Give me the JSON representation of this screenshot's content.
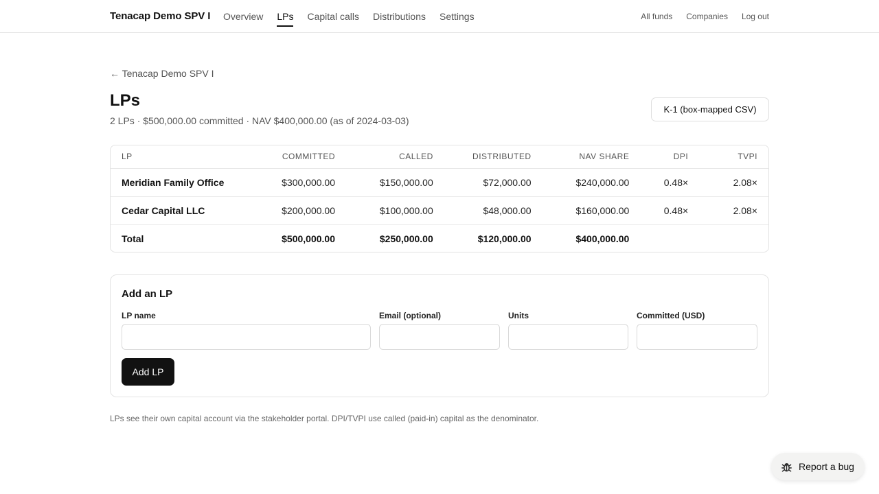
{
  "header": {
    "brand": "Tenacap Demo SPV I",
    "nav": [
      {
        "label": "Overview",
        "active": false
      },
      {
        "label": "LPs",
        "active": true
      },
      {
        "label": "Capital calls",
        "active": false
      },
      {
        "label": "Distributions",
        "active": false
      },
      {
        "label": "Settings",
        "active": false
      }
    ],
    "right_links": [
      "All funds",
      "Companies",
      "Log out"
    ]
  },
  "page": {
    "back_label": "← Tenacap Demo SPV I",
    "title": "LPs",
    "subtitle": "2 LPs · $500,000.00 committed · NAV $400,000.00 (as of 2024-03-03)",
    "export_button": "K-1 (box-mapped CSV)"
  },
  "table": {
    "columns": [
      "LP",
      "COMMITTED",
      "CALLED",
      "DISTRIBUTED",
      "NAV SHARE",
      "DPI",
      "TVPI"
    ],
    "rows": [
      [
        "Meridian Family Office",
        "$300,000.00",
        "$150,000.00",
        "$72,000.00",
        "$240,000.00",
        "0.48×",
        "2.08×"
      ],
      [
        "Cedar Capital LLC",
        "$200,000.00",
        "$100,000.00",
        "$48,000.00",
        "$160,000.00",
        "0.48×",
        "2.08×"
      ]
    ],
    "total": [
      "Total",
      "$500,000.00",
      "$250,000.00",
      "$120,000.00",
      "$400,000.00",
      "",
      ""
    ]
  },
  "add_form": {
    "title": "Add an LP",
    "fields": {
      "name_label": "LP name",
      "email_label": "Email (optional)",
      "units_label": "Units",
      "committed_label": "Committed (USD)"
    },
    "values": {
      "name": "",
      "email": "",
      "units": "",
      "committed": ""
    },
    "submit_label": "Add LP"
  },
  "footnote": "LPs see their own capital account via the stakeholder portal. DPI/TVPI use called (paid-in) capital as the denominator.",
  "bug_button": {
    "label": "Report a bug",
    "icon": "bug-icon"
  }
}
